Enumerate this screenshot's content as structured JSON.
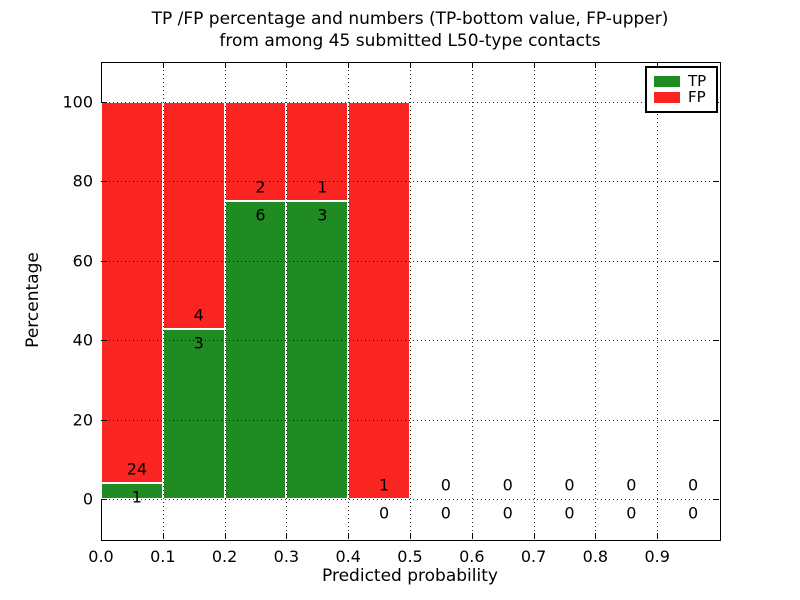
{
  "title": {
    "line1": "TP /FP percentage and numbers (TP-bottom value, FP-upper)",
    "line2": "from among 45 submitted L50-type contacts"
  },
  "chart_data": {
    "type": "bar",
    "stacked": true,
    "title": "TP /FP percentage and numbers (TP-bottom value, FP-upper) from among 45 submitted L50-type contacts",
    "xlabel": "Predicted probability",
    "ylabel": "Percentage",
    "xlim": [
      0.0,
      1.0
    ],
    "ylim": [
      -10,
      110
    ],
    "grid": "dotted",
    "x_ticks": [
      {
        "value": 0.0,
        "label": "0.0"
      },
      {
        "value": 0.1,
        "label": "0.1"
      },
      {
        "value": 0.2,
        "label": "0.2"
      },
      {
        "value": 0.3,
        "label": "0.3"
      },
      {
        "value": 0.4,
        "label": "0.4"
      },
      {
        "value": 0.5,
        "label": "0.5"
      },
      {
        "value": 0.6,
        "label": "0.6"
      },
      {
        "value": 0.7,
        "label": "0.7"
      },
      {
        "value": 0.8,
        "label": "0.8"
      },
      {
        "value": 0.9,
        "label": "0.9"
      }
    ],
    "y_ticks": [
      {
        "value": 0,
        "label": "0"
      },
      {
        "value": 20,
        "label": "20"
      },
      {
        "value": 40,
        "label": "40"
      },
      {
        "value": 60,
        "label": "60"
      },
      {
        "value": 80,
        "label": "80"
      },
      {
        "value": 100,
        "label": "100"
      }
    ],
    "bins": [
      {
        "x0": 0.0,
        "x1": 0.1,
        "tp": 1,
        "fp": 24,
        "tp_pct": 4.0,
        "fp_pct": 96.0
      },
      {
        "x0": 0.1,
        "x1": 0.2,
        "tp": 3,
        "fp": 4,
        "tp_pct": 42.86,
        "fp_pct": 57.14
      },
      {
        "x0": 0.2,
        "x1": 0.3,
        "tp": 6,
        "fp": 2,
        "tp_pct": 75.0,
        "fp_pct": 25.0
      },
      {
        "x0": 0.3,
        "x1": 0.4,
        "tp": 3,
        "fp": 1,
        "tp_pct": 75.0,
        "fp_pct": 25.0
      },
      {
        "x0": 0.4,
        "x1": 0.5,
        "tp": 0,
        "fp": 1,
        "tp_pct": 0.0,
        "fp_pct": 100.0
      },
      {
        "x0": 0.5,
        "x1": 0.6,
        "tp": 0,
        "fp": 0,
        "tp_pct": null,
        "fp_pct": null
      },
      {
        "x0": 0.6,
        "x1": 0.7,
        "tp": 0,
        "fp": 0,
        "tp_pct": null,
        "fp_pct": null
      },
      {
        "x0": 0.7,
        "x1": 0.8,
        "tp": 0,
        "fp": 0,
        "tp_pct": null,
        "fp_pct": null
      },
      {
        "x0": 0.8,
        "x1": 0.9,
        "tp": 0,
        "fp": 0,
        "tp_pct": null,
        "fp_pct": null
      },
      {
        "x0": 0.9,
        "x1": 1.0,
        "tp": 0,
        "fp": 0,
        "tp_pct": null,
        "fp_pct": null
      }
    ],
    "colors": {
      "tp": "#208b22",
      "fp": "#fa2420"
    },
    "legend": {
      "position": "upper-right",
      "entries": [
        {
          "label": "TP",
          "color": "#208b22"
        },
        {
          "label": "FP",
          "color": "#fa2420"
        }
      ]
    }
  }
}
